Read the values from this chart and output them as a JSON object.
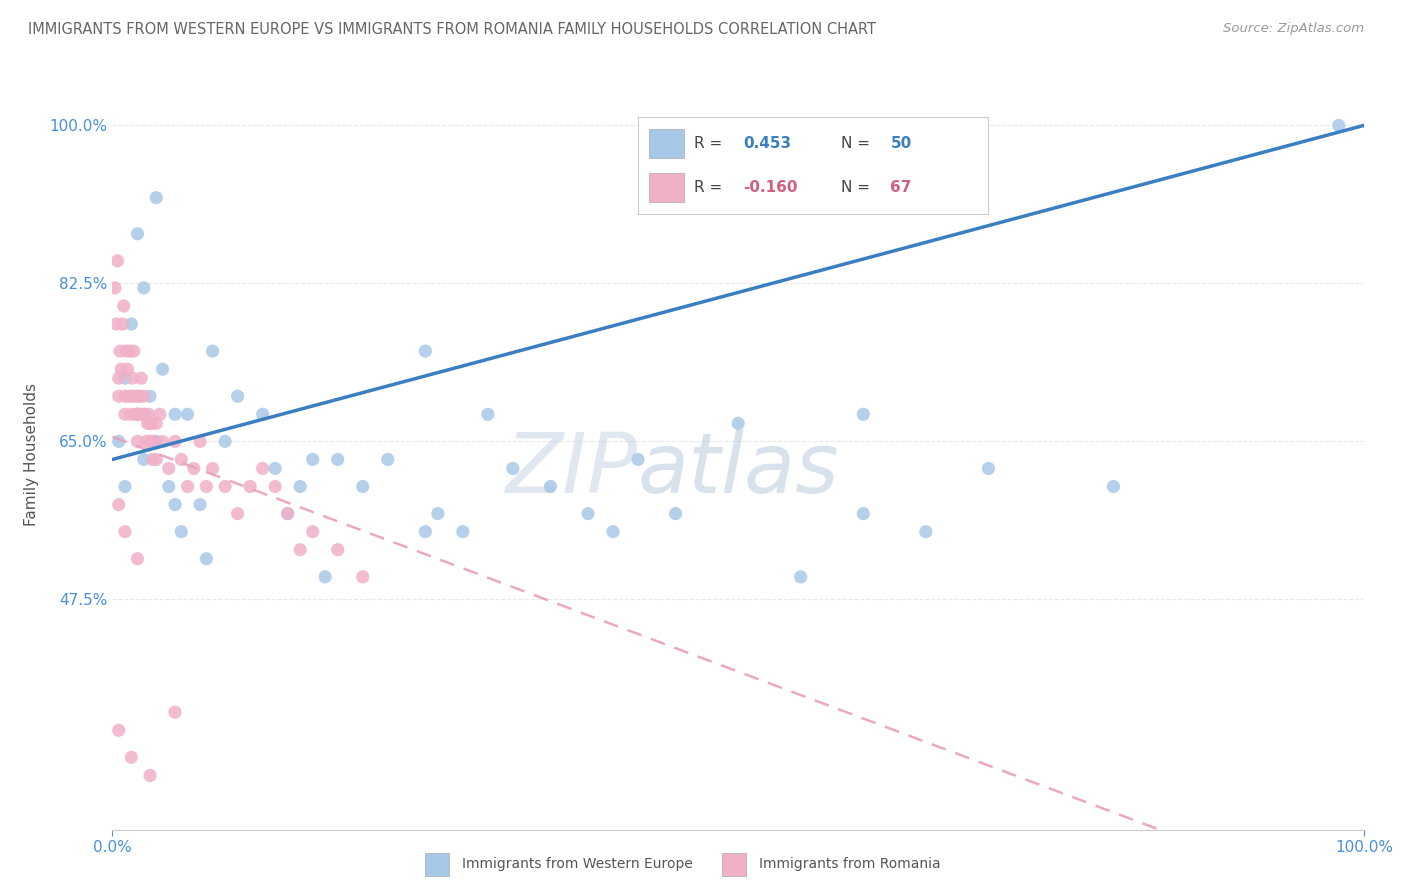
{
  "title": "IMMIGRANTS FROM WESTERN EUROPE VS IMMIGRANTS FROM ROMANIA FAMILY HOUSEHOLDS CORRELATION CHART",
  "source": "Source: ZipAtlas.com",
  "ylabel": "Family Households",
  "r_blue": 0.453,
  "n_blue": 50,
  "r_pink": -0.16,
  "n_pink": 67,
  "blue_scatter": [
    [
      0.5,
      65
    ],
    [
      1.0,
      72
    ],
    [
      1.5,
      78
    ],
    [
      2.0,
      68
    ],
    [
      2.5,
      82
    ],
    [
      3.0,
      70
    ],
    [
      3.5,
      65
    ],
    [
      4.0,
      73
    ],
    [
      4.5,
      60
    ],
    [
      5.0,
      68
    ],
    [
      5.5,
      55
    ],
    [
      6.0,
      68
    ],
    [
      7.0,
      58
    ],
    [
      7.5,
      52
    ],
    [
      8.0,
      75
    ],
    [
      9.0,
      65
    ],
    [
      10.0,
      70
    ],
    [
      12.0,
      68
    ],
    [
      13.0,
      62
    ],
    [
      14.0,
      57
    ],
    [
      15.0,
      60
    ],
    [
      16.0,
      63
    ],
    [
      17.0,
      50
    ],
    [
      18.0,
      63
    ],
    [
      20.0,
      60
    ],
    [
      22.0,
      63
    ],
    [
      25.0,
      55
    ],
    [
      26.0,
      57
    ],
    [
      28.0,
      55
    ],
    [
      30.0,
      68
    ],
    [
      32.0,
      62
    ],
    [
      35.0,
      60
    ],
    [
      38.0,
      57
    ],
    [
      40.0,
      55
    ],
    [
      42.0,
      63
    ],
    [
      45.0,
      57
    ],
    [
      50.0,
      67
    ],
    [
      55.0,
      50
    ],
    [
      60.0,
      57
    ],
    [
      65.0,
      55
    ],
    [
      70.0,
      62
    ],
    [
      80.0,
      60
    ],
    [
      2.0,
      88
    ],
    [
      3.5,
      92
    ],
    [
      25.0,
      75
    ],
    [
      60.0,
      68
    ],
    [
      1.0,
      60
    ],
    [
      2.5,
      63
    ],
    [
      5.0,
      58
    ],
    [
      98.0,
      100
    ]
  ],
  "pink_scatter": [
    [
      0.2,
      82
    ],
    [
      0.3,
      78
    ],
    [
      0.4,
      85
    ],
    [
      0.5,
      72
    ],
    [
      0.5,
      70
    ],
    [
      0.6,
      75
    ],
    [
      0.7,
      73
    ],
    [
      0.8,
      78
    ],
    [
      0.9,
      80
    ],
    [
      1.0,
      70
    ],
    [
      1.0,
      68
    ],
    [
      1.1,
      75
    ],
    [
      1.2,
      73
    ],
    [
      1.3,
      70
    ],
    [
      1.4,
      75
    ],
    [
      1.5,
      70
    ],
    [
      1.5,
      68
    ],
    [
      1.6,
      72
    ],
    [
      1.7,
      75
    ],
    [
      1.8,
      70
    ],
    [
      1.9,
      68
    ],
    [
      2.0,
      70
    ],
    [
      2.0,
      68
    ],
    [
      2.0,
      65
    ],
    [
      2.1,
      68
    ],
    [
      2.2,
      70
    ],
    [
      2.3,
      72
    ],
    [
      2.4,
      68
    ],
    [
      2.5,
      70
    ],
    [
      2.6,
      68
    ],
    [
      2.7,
      65
    ],
    [
      2.8,
      67
    ],
    [
      2.9,
      68
    ],
    [
      3.0,
      67
    ],
    [
      3.0,
      65
    ],
    [
      3.1,
      67
    ],
    [
      3.2,
      63
    ],
    [
      3.3,
      65
    ],
    [
      3.5,
      67
    ],
    [
      3.5,
      63
    ],
    [
      3.8,
      68
    ],
    [
      4.0,
      65
    ],
    [
      4.5,
      62
    ],
    [
      5.0,
      65
    ],
    [
      5.5,
      63
    ],
    [
      6.0,
      60
    ],
    [
      6.5,
      62
    ],
    [
      7.0,
      65
    ],
    [
      7.5,
      60
    ],
    [
      8.0,
      62
    ],
    [
      9.0,
      60
    ],
    [
      10.0,
      57
    ],
    [
      11.0,
      60
    ],
    [
      12.0,
      62
    ],
    [
      13.0,
      60
    ],
    [
      14.0,
      57
    ],
    [
      15.0,
      53
    ],
    [
      16.0,
      55
    ],
    [
      18.0,
      53
    ],
    [
      20.0,
      50
    ],
    [
      0.5,
      58
    ],
    [
      1.0,
      55
    ],
    [
      2.0,
      52
    ],
    [
      5.0,
      35
    ],
    [
      0.5,
      33
    ],
    [
      1.5,
      30
    ],
    [
      3.0,
      28
    ]
  ],
  "watermark_zip": "ZIP",
  "watermark_atlas": "atlas",
  "background_color": "#ffffff",
  "blue_color": "#a8c8e8",
  "pink_color": "#f0b0c8",
  "blue_line_color": "#3a7fc1",
  "pink_line_color": "#e8a0b8",
  "grid_color": "#e8e8e8",
  "axis_label_color": "#4a90d9",
  "title_color": "#666666",
  "ytick_vals": [
    47.5,
    65.0,
    82.5,
    100.0
  ],
  "ytick_labels": [
    "47.5%",
    "65.0%",
    "82.5%",
    "100.0%"
  ],
  "ylim": [
    22,
    105
  ],
  "xlim": [
    0,
    100
  ]
}
